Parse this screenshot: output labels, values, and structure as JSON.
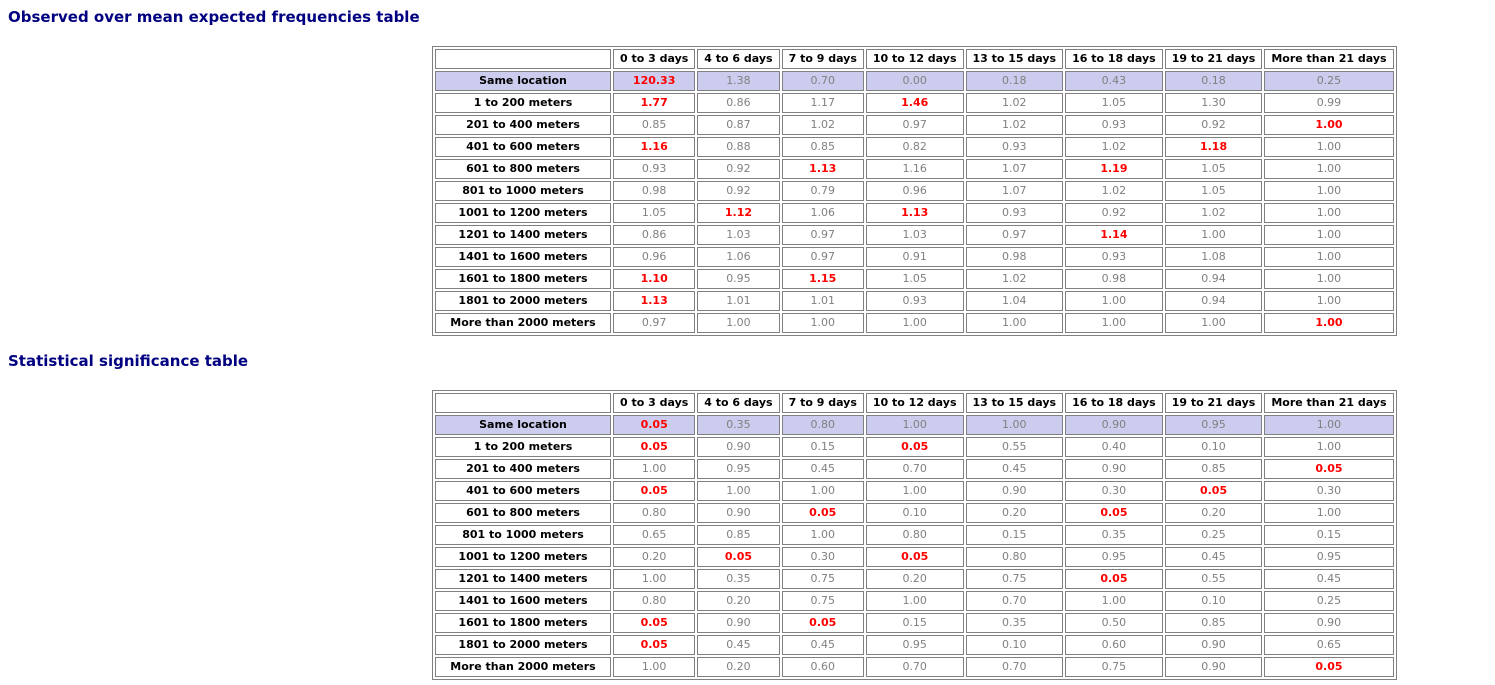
{
  "colors": {
    "title": "#000080",
    "border": "#808080",
    "normal_value": "#808080",
    "significant_value": "#ff0000",
    "highlight_row_bg": "#ccccee"
  },
  "sections": [
    {
      "id": "frequencies",
      "title": "Observed over mean expected frequencies table",
      "corner_label": "",
      "columns": [
        "0 to 3 days",
        "4 to 6 days",
        "7 to 9 days",
        "10 to 12 days",
        "13 to 15 days",
        "16 to 18 days",
        "19 to 21 days",
        "More than 21 days"
      ],
      "rows": [
        {
          "label": "Same location",
          "highlight": true,
          "cells": [
            {
              "v": "120.33",
              "sig": true
            },
            {
              "v": "1.38"
            },
            {
              "v": "0.70"
            },
            {
              "v": "0.00"
            },
            {
              "v": "0.18"
            },
            {
              "v": "0.43"
            },
            {
              "v": "0.18"
            },
            {
              "v": "0.25"
            }
          ]
        },
        {
          "label": "1 to 200 meters",
          "cells": [
            {
              "v": "1.77",
              "sig": true
            },
            {
              "v": "0.86"
            },
            {
              "v": "1.17"
            },
            {
              "v": "1.46",
              "sig": true
            },
            {
              "v": "1.02"
            },
            {
              "v": "1.05"
            },
            {
              "v": "1.30"
            },
            {
              "v": "0.99"
            }
          ]
        },
        {
          "label": "201 to 400 meters",
          "cells": [
            {
              "v": "0.85"
            },
            {
              "v": "0.87"
            },
            {
              "v": "1.02"
            },
            {
              "v": "0.97"
            },
            {
              "v": "1.02"
            },
            {
              "v": "0.93"
            },
            {
              "v": "0.92"
            },
            {
              "v": "1.00",
              "sig": true
            }
          ]
        },
        {
          "label": "401 to 600 meters",
          "cells": [
            {
              "v": "1.16",
              "sig": true
            },
            {
              "v": "0.88"
            },
            {
              "v": "0.85"
            },
            {
              "v": "0.82"
            },
            {
              "v": "0.93"
            },
            {
              "v": "1.02"
            },
            {
              "v": "1.18",
              "sig": true
            },
            {
              "v": "1.00"
            }
          ]
        },
        {
          "label": "601 to 800 meters",
          "cells": [
            {
              "v": "0.93"
            },
            {
              "v": "0.92"
            },
            {
              "v": "1.13",
              "sig": true
            },
            {
              "v": "1.16"
            },
            {
              "v": "1.07"
            },
            {
              "v": "1.19",
              "sig": true
            },
            {
              "v": "1.05"
            },
            {
              "v": "1.00"
            }
          ]
        },
        {
          "label": "801 to 1000 meters",
          "cells": [
            {
              "v": "0.98"
            },
            {
              "v": "0.92"
            },
            {
              "v": "0.79"
            },
            {
              "v": "0.96"
            },
            {
              "v": "1.07"
            },
            {
              "v": "1.02"
            },
            {
              "v": "1.05"
            },
            {
              "v": "1.00"
            }
          ]
        },
        {
          "label": "1001 to 1200 meters",
          "cells": [
            {
              "v": "1.05"
            },
            {
              "v": "1.12",
              "sig": true
            },
            {
              "v": "1.06"
            },
            {
              "v": "1.13",
              "sig": true
            },
            {
              "v": "0.93"
            },
            {
              "v": "0.92"
            },
            {
              "v": "1.02"
            },
            {
              "v": "1.00"
            }
          ]
        },
        {
          "label": "1201 to 1400 meters",
          "cells": [
            {
              "v": "0.86"
            },
            {
              "v": "1.03"
            },
            {
              "v": "0.97"
            },
            {
              "v": "1.03"
            },
            {
              "v": "0.97"
            },
            {
              "v": "1.14",
              "sig": true
            },
            {
              "v": "1.00"
            },
            {
              "v": "1.00"
            }
          ]
        },
        {
          "label": "1401 to 1600 meters",
          "cells": [
            {
              "v": "0.96"
            },
            {
              "v": "1.06"
            },
            {
              "v": "0.97"
            },
            {
              "v": "0.91"
            },
            {
              "v": "0.98"
            },
            {
              "v": "0.93"
            },
            {
              "v": "1.08"
            },
            {
              "v": "1.00"
            }
          ]
        },
        {
          "label": "1601 to 1800 meters",
          "cells": [
            {
              "v": "1.10",
              "sig": true
            },
            {
              "v": "0.95"
            },
            {
              "v": "1.15",
              "sig": true
            },
            {
              "v": "1.05"
            },
            {
              "v": "1.02"
            },
            {
              "v": "0.98"
            },
            {
              "v": "0.94"
            },
            {
              "v": "1.00"
            }
          ]
        },
        {
          "label": "1801 to 2000 meters",
          "cells": [
            {
              "v": "1.13",
              "sig": true
            },
            {
              "v": "1.01"
            },
            {
              "v": "1.01"
            },
            {
              "v": "0.93"
            },
            {
              "v": "1.04"
            },
            {
              "v": "1.00"
            },
            {
              "v": "0.94"
            },
            {
              "v": "1.00"
            }
          ]
        },
        {
          "label": "More than 2000 meters",
          "cells": [
            {
              "v": "0.97"
            },
            {
              "v": "1.00"
            },
            {
              "v": "1.00"
            },
            {
              "v": "1.00"
            },
            {
              "v": "1.00"
            },
            {
              "v": "1.00"
            },
            {
              "v": "1.00"
            },
            {
              "v": "1.00",
              "sig": true
            }
          ]
        }
      ]
    },
    {
      "id": "significance",
      "title": "Statistical significance table",
      "corner_label": "",
      "columns": [
        "0 to 3 days",
        "4 to 6 days",
        "7 to 9 days",
        "10 to 12 days",
        "13 to 15 days",
        "16 to 18 days",
        "19 to 21 days",
        "More than 21 days"
      ],
      "rows": [
        {
          "label": "Same location",
          "highlight": true,
          "cells": [
            {
              "v": "0.05",
              "sig": true
            },
            {
              "v": "0.35"
            },
            {
              "v": "0.80"
            },
            {
              "v": "1.00"
            },
            {
              "v": "1.00"
            },
            {
              "v": "0.90"
            },
            {
              "v": "0.95"
            },
            {
              "v": "1.00"
            }
          ]
        },
        {
          "label": "1 to 200 meters",
          "cells": [
            {
              "v": "0.05",
              "sig": true
            },
            {
              "v": "0.90"
            },
            {
              "v": "0.15"
            },
            {
              "v": "0.05",
              "sig": true
            },
            {
              "v": "0.55"
            },
            {
              "v": "0.40"
            },
            {
              "v": "0.10"
            },
            {
              "v": "1.00"
            }
          ]
        },
        {
          "label": "201 to 400 meters",
          "cells": [
            {
              "v": "1.00"
            },
            {
              "v": "0.95"
            },
            {
              "v": "0.45"
            },
            {
              "v": "0.70"
            },
            {
              "v": "0.45"
            },
            {
              "v": "0.90"
            },
            {
              "v": "0.85"
            },
            {
              "v": "0.05",
              "sig": true
            }
          ]
        },
        {
          "label": "401 to 600 meters",
          "cells": [
            {
              "v": "0.05",
              "sig": true
            },
            {
              "v": "1.00"
            },
            {
              "v": "1.00"
            },
            {
              "v": "1.00"
            },
            {
              "v": "0.90"
            },
            {
              "v": "0.30"
            },
            {
              "v": "0.05",
              "sig": true
            },
            {
              "v": "0.30"
            }
          ]
        },
        {
          "label": "601 to 800 meters",
          "cells": [
            {
              "v": "0.80"
            },
            {
              "v": "0.90"
            },
            {
              "v": "0.05",
              "sig": true
            },
            {
              "v": "0.10"
            },
            {
              "v": "0.20"
            },
            {
              "v": "0.05",
              "sig": true
            },
            {
              "v": "0.20"
            },
            {
              "v": "1.00"
            }
          ]
        },
        {
          "label": "801 to 1000 meters",
          "cells": [
            {
              "v": "0.65"
            },
            {
              "v": "0.85"
            },
            {
              "v": "1.00"
            },
            {
              "v": "0.80"
            },
            {
              "v": "0.15"
            },
            {
              "v": "0.35"
            },
            {
              "v": "0.25"
            },
            {
              "v": "0.15"
            }
          ]
        },
        {
          "label": "1001 to 1200 meters",
          "cells": [
            {
              "v": "0.20"
            },
            {
              "v": "0.05",
              "sig": true
            },
            {
              "v": "0.30"
            },
            {
              "v": "0.05",
              "sig": true
            },
            {
              "v": "0.80"
            },
            {
              "v": "0.95"
            },
            {
              "v": "0.45"
            },
            {
              "v": "0.95"
            }
          ]
        },
        {
          "label": "1201 to 1400 meters",
          "cells": [
            {
              "v": "1.00"
            },
            {
              "v": "0.35"
            },
            {
              "v": "0.75"
            },
            {
              "v": "0.20"
            },
            {
              "v": "0.75"
            },
            {
              "v": "0.05",
              "sig": true
            },
            {
              "v": "0.55"
            },
            {
              "v": "0.45"
            }
          ]
        },
        {
          "label": "1401 to 1600 meters",
          "cells": [
            {
              "v": "0.80"
            },
            {
              "v": "0.20"
            },
            {
              "v": "0.75"
            },
            {
              "v": "1.00"
            },
            {
              "v": "0.70"
            },
            {
              "v": "1.00"
            },
            {
              "v": "0.10"
            },
            {
              "v": "0.25"
            }
          ]
        },
        {
          "label": "1601 to 1800 meters",
          "cells": [
            {
              "v": "0.05",
              "sig": true
            },
            {
              "v": "0.90"
            },
            {
              "v": "0.05",
              "sig": true
            },
            {
              "v": "0.15"
            },
            {
              "v": "0.35"
            },
            {
              "v": "0.50"
            },
            {
              "v": "0.85"
            },
            {
              "v": "0.90"
            }
          ]
        },
        {
          "label": "1801 to 2000 meters",
          "cells": [
            {
              "v": "0.05",
              "sig": true
            },
            {
              "v": "0.45"
            },
            {
              "v": "0.45"
            },
            {
              "v": "0.95"
            },
            {
              "v": "0.10"
            },
            {
              "v": "0.60"
            },
            {
              "v": "0.90"
            },
            {
              "v": "0.65"
            }
          ]
        },
        {
          "label": "More than 2000 meters",
          "cells": [
            {
              "v": "1.00"
            },
            {
              "v": "0.20"
            },
            {
              "v": "0.60"
            },
            {
              "v": "0.70"
            },
            {
              "v": "0.70"
            },
            {
              "v": "0.75"
            },
            {
              "v": "0.90"
            },
            {
              "v": "0.05",
              "sig": true
            }
          ]
        }
      ]
    }
  ]
}
